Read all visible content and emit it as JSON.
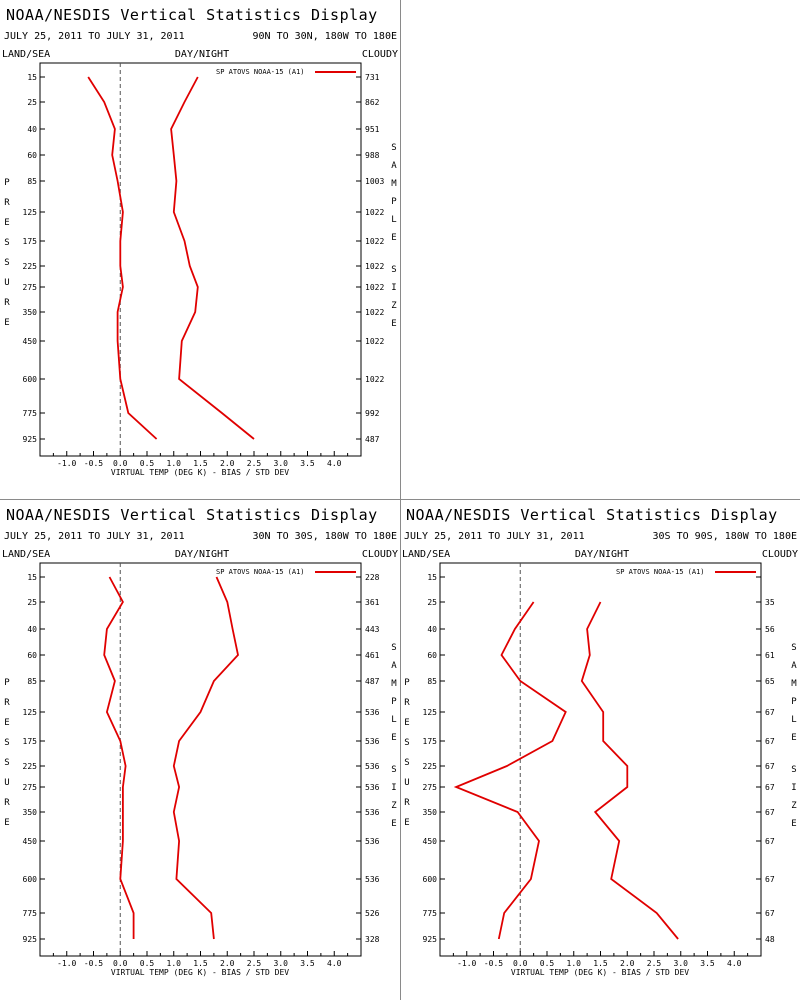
{
  "meta": {
    "title": "NOAA/NESDIS Vertical Statistics Display",
    "date_range": "JULY 25, 2011 TO JULY 31, 2011",
    "land_sea": "LAND/SEA",
    "day_night": "DAY/NIGHT",
    "cloudy": "CLOUDY",
    "xlabel": "VIRTUAL TEMP (DEG K) - BIAS / STD DEV",
    "left_axis_word": "PRESSURE",
    "right_axis_word": "SAMPLE SIZE",
    "legend_label": "SP ATOVS NOAA-15 (A1)",
    "colors": {
      "series": "#e00000",
      "axis": "#000000",
      "zero_line": "#555555",
      "separator": "#8a8a8a"
    },
    "pressure_levels": [
      15,
      25,
      40,
      60,
      85,
      125,
      175,
      225,
      275,
      350,
      450,
      600,
      775,
      925
    ],
    "x_ticks": [
      "-1.0",
      "-0.5",
      "0.0",
      "0.5",
      "1.0",
      "1.5",
      "2.0",
      "2.5",
      "3.0",
      "3.5",
      "4.0"
    ]
  },
  "chart_data": [
    {
      "type": "line",
      "region": "90N TO 30N, 180W TO 180E",
      "xlim": [
        -1.5,
        4.5
      ],
      "pressure": [
        15,
        25,
        40,
        60,
        85,
        125,
        175,
        225,
        275,
        350,
        450,
        600,
        775,
        925
      ],
      "sample_size": [
        "731",
        "862",
        "951",
        "988",
        "1003",
        "1022",
        "1022",
        "1022",
        "1022",
        "1022",
        "1022",
        "1022",
        "992",
        "487"
      ],
      "series": [
        {
          "role": "bias",
          "values": [
            -0.6,
            -0.3,
            -0.1,
            -0.15,
            -0.05,
            0.05,
            0.0,
            0.0,
            0.05,
            -0.05,
            -0.05,
            0.0,
            0.15,
            0.68
          ]
        },
        {
          "role": "std_dev",
          "values": [
            1.45,
            1.2,
            0.95,
            1.0,
            1.05,
            1.0,
            1.2,
            1.3,
            1.45,
            1.4,
            1.15,
            1.1,
            1.9,
            2.5
          ]
        }
      ]
    },
    {
      "type": "line",
      "region": "30N TO 30S, 180W TO 180E",
      "xlim": [
        -1.5,
        4.5
      ],
      "pressure": [
        15,
        25,
        40,
        60,
        85,
        125,
        175,
        225,
        275,
        350,
        450,
        600,
        775,
        925
      ],
      "sample_size": [
        "228",
        "361",
        "443",
        "461",
        "487",
        "536",
        "536",
        "536",
        "536",
        "536",
        "536",
        "536",
        "526",
        "328"
      ],
      "series": [
        {
          "role": "bias",
          "values": [
            -0.2,
            0.05,
            -0.25,
            -0.3,
            -0.1,
            -0.25,
            0.0,
            0.1,
            0.05,
            0.05,
            0.05,
            0.0,
            0.25,
            0.25
          ]
        },
        {
          "role": "std_dev",
          "values": [
            1.8,
            2.0,
            2.1,
            2.2,
            1.75,
            1.5,
            1.1,
            1.0,
            1.1,
            1.0,
            1.1,
            1.05,
            1.7,
            1.75
          ]
        }
      ]
    },
    {
      "type": "line",
      "region": "30S TO 90S, 180W TO 180E",
      "xlim": [
        -1.5,
        4.5
      ],
      "pressure": [
        25,
        40,
        60,
        85,
        125,
        175,
        225,
        275,
        350,
        450,
        600,
        775,
        925
      ],
      "sample_size": [
        "35",
        "56",
        "61",
        "65",
        "67",
        "67",
        "67",
        "67",
        "67",
        "67",
        "67",
        "67",
        "48"
      ],
      "series": [
        {
          "role": "bias",
          "values": [
            0.25,
            -0.1,
            -0.35,
            0.0,
            0.85,
            0.6,
            -0.25,
            -1.2,
            -0.05,
            0.35,
            0.2,
            -0.3,
            -0.4
          ]
        },
        {
          "role": "std_dev",
          "values": [
            1.5,
            1.25,
            1.3,
            1.15,
            1.55,
            1.55,
            2.0,
            2.0,
            1.4,
            1.85,
            1.7,
            2.55,
            2.95
          ]
        }
      ]
    }
  ]
}
